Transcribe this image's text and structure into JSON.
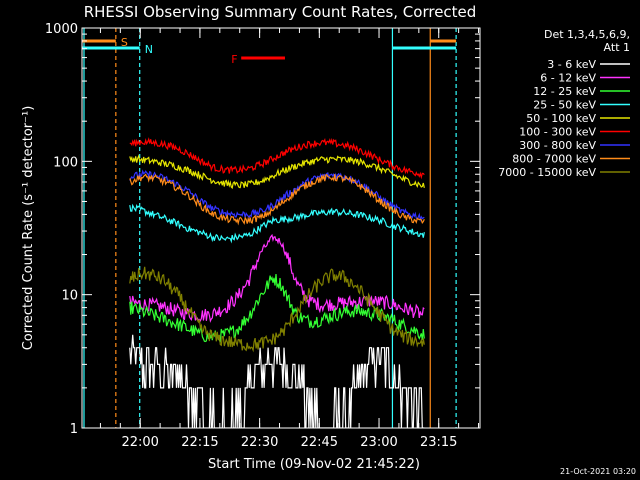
{
  "chart_data": {
    "type": "line",
    "title": "RHESSI Observing Summary Count Rates, Corrected",
    "xlabel": "Start Time (09-Nov-02 21:45:22)",
    "ylabel": "Corrected Count Rate (s⁻¹ detector⁻¹)",
    "x_unit": "minutes after 21:45:22",
    "xlim": [
      0,
      100
    ],
    "yscale": "log",
    "ylim": [
      1,
      1000
    ],
    "x_ticks": [
      {
        "x": 14.63,
        "label": "22:00"
      },
      {
        "x": 29.63,
        "label": "22:15"
      },
      {
        "x": 44.63,
        "label": "22:30"
      },
      {
        "x": 59.63,
        "label": "22:45"
      },
      {
        "x": 74.63,
        "label": "23:00"
      },
      {
        "x": 89.63,
        "label": "23:15"
      }
    ],
    "y_ticks": [
      {
        "y": 1,
        "label": "1"
      },
      {
        "y": 10,
        "label": "10"
      },
      {
        "y": 100,
        "label": "100"
      },
      {
        "y": 1000,
        "label": "1000"
      }
    ],
    "legend_header": [
      "Det 1,3,4,5,6,9,",
      "Att 1"
    ],
    "legend_position": "top-right",
    "timestamp": "21-Oct-2021 03:20",
    "flags": [
      {
        "label": "S",
        "color": "#ff8c1a",
        "x_start": 0,
        "x_end": 8.5
      },
      {
        "label": "N",
        "color": "#33ffff",
        "x_start": 0,
        "x_end": 14.5
      },
      {
        "label": "F",
        "color": "#ff0000",
        "x_start": 40,
        "x_end": 51
      },
      {
        "label": "",
        "color": "#ff8c1a",
        "x_start": 87.5,
        "x_end": 94
      },
      {
        "label": "",
        "color": "#33ffff",
        "x_start": 78,
        "x_end": 94
      }
    ],
    "vlines": [
      {
        "x": 0.5,
        "color": "#33ffff",
        "style": "solid"
      },
      {
        "x": 8.5,
        "color": "#ff8c1a",
        "style": "dashed"
      },
      {
        "x": 14.5,
        "color": "#33ffff",
        "style": "dashed"
      },
      {
        "x": 78,
        "color": "#33ffff",
        "style": "solid"
      },
      {
        "x": 87.5,
        "color": "#ff8c1a",
        "style": "solid"
      },
      {
        "x": 94,
        "color": "#33ffff",
        "style": "dashed"
      }
    ],
    "series": [
      {
        "name": "3 - 6 keV",
        "color": "#ffffff",
        "x": [
          12,
          15,
          18,
          21,
          24,
          27,
          30,
          33,
          36,
          39,
          42,
          45,
          48,
          51,
          54,
          57,
          60,
          63,
          66,
          69,
          72,
          75,
          78,
          80,
          83,
          86
        ],
        "values": [
          3.3,
          3.0,
          2.8,
          2.6,
          2.5,
          2.0,
          1.4,
          1.2,
          1.1,
          1.3,
          2.0,
          3.0,
          3.2,
          2.8,
          2.3,
          1.6,
          1.2,
          1.1,
          1.3,
          2.0,
          3.0,
          3.3,
          2.8,
          2.0,
          1.5,
          1.3
        ]
      },
      {
        "name": "6 - 12 keV",
        "color": "#ff33ff",
        "x": [
          12,
          15,
          18,
          21,
          24,
          27,
          30,
          33,
          36,
          39,
          42,
          45,
          48,
          50,
          52,
          54,
          57,
          60,
          63,
          66,
          69,
          72,
          75,
          78,
          80,
          83,
          86
        ],
        "values": [
          8.8,
          8.5,
          8.3,
          8.0,
          7.5,
          7.2,
          7.0,
          7.2,
          8.0,
          9.5,
          13.0,
          21.0,
          27.0,
          25.0,
          18.0,
          12.0,
          9.0,
          8.4,
          8.5,
          8.7,
          8.8,
          9.0,
          8.8,
          8.5,
          8.0,
          7.6,
          7.0
        ]
      },
      {
        "name": "12 - 25 keV",
        "color": "#33ff33",
        "x": [
          12,
          15,
          18,
          21,
          24,
          27,
          30,
          33,
          36,
          39,
          42,
          45,
          48,
          50,
          52,
          54,
          57,
          60,
          63,
          66,
          69,
          72,
          75,
          78,
          80,
          83,
          86
        ],
        "values": [
          8.0,
          7.5,
          7.0,
          6.5,
          6.0,
          5.5,
          5.0,
          4.8,
          5.0,
          5.5,
          7.0,
          10.0,
          13.5,
          12.0,
          9.0,
          7.0,
          6.3,
          6.5,
          7.0,
          7.4,
          7.6,
          7.3,
          7.0,
          6.5,
          6.0,
          5.5,
          5.0
        ]
      },
      {
        "name": "25 - 50 keV",
        "color": "#33ffff",
        "x": [
          12,
          15,
          18,
          21,
          24,
          27,
          30,
          33,
          36,
          39,
          42,
          45,
          48,
          51,
          54,
          57,
          60,
          63,
          66,
          69,
          72,
          75,
          78,
          81,
          84,
          86
        ],
        "values": [
          45,
          43,
          40,
          37,
          34,
          31,
          29,
          27,
          26,
          27,
          28,
          32,
          36,
          37,
          38,
          40,
          41,
          42,
          41,
          40,
          38,
          36,
          33,
          31,
          29,
          28
        ]
      },
      {
        "name": "50 - 100 keV",
        "color": "#e6e600",
        "x": [
          12,
          15,
          18,
          21,
          24,
          27,
          30,
          33,
          36,
          39,
          42,
          45,
          48,
          51,
          54,
          57,
          60,
          63,
          66,
          69,
          72,
          75,
          78,
          81,
          84,
          86
        ],
        "values": [
          105,
          103,
          100,
          96,
          91,
          85,
          78,
          72,
          68,
          66,
          67,
          71,
          78,
          86,
          93,
          99,
          103,
          104,
          103,
          100,
          95,
          88,
          80,
          73,
          68,
          65
        ]
      },
      {
        "name": "100 - 300 keV",
        "color": "#ff0000",
        "x": [
          12,
          15,
          18,
          21,
          24,
          27,
          30,
          33,
          36,
          39,
          42,
          45,
          48,
          51,
          54,
          57,
          60,
          63,
          66,
          69,
          72,
          75,
          78,
          81,
          84,
          86
        ],
        "values": [
          135,
          140,
          138,
          133,
          125,
          113,
          100,
          90,
          86,
          86,
          88,
          95,
          105,
          117,
          127,
          135,
          138,
          137,
          132,
          124,
          113,
          102,
          93,
          86,
          82,
          80
        ]
      },
      {
        "name": "300 - 800 keV",
        "color": "#3333ff",
        "x": [
          12,
          15,
          18,
          21,
          24,
          27,
          30,
          33,
          36,
          39,
          42,
          45,
          48,
          51,
          54,
          57,
          60,
          63,
          66,
          69,
          72,
          75,
          78,
          81,
          84,
          86
        ],
        "values": [
          76,
          80,
          79,
          74,
          67,
          59,
          50,
          44,
          41,
          40,
          40,
          42,
          47,
          55,
          63,
          71,
          77,
          79,
          77,
          71,
          62,
          53,
          46,
          41,
          39,
          38
        ]
      },
      {
        "name": "800 - 7000 keV",
        "color": "#ff8c1a",
        "x": [
          12,
          15,
          18,
          21,
          24,
          27,
          30,
          33,
          36,
          39,
          42,
          45,
          48,
          51,
          54,
          57,
          60,
          63,
          66,
          69,
          72,
          75,
          78,
          81,
          84,
          86
        ],
        "values": [
          70,
          76,
          75,
          70,
          63,
          55,
          46,
          40,
          37,
          36,
          36,
          38,
          43,
          51,
          60,
          68,
          74,
          76,
          74,
          68,
          59,
          50,
          43,
          38,
          36,
          35
        ]
      },
      {
        "name": "7000 - 15000 keV",
        "color": "#808000",
        "x": [
          12,
          15,
          18,
          21,
          24,
          27,
          30,
          33,
          36,
          39,
          42,
          45,
          48,
          51,
          54,
          57,
          60,
          63,
          66,
          69,
          72,
          75,
          78,
          81,
          84,
          86
        ],
        "values": [
          13.0,
          14.5,
          14.0,
          12.5,
          10.0,
          7.5,
          5.5,
          4.8,
          4.5,
          4.3,
          4.2,
          4.3,
          4.6,
          5.5,
          7.5,
          10.0,
          12.5,
          14.0,
          13.5,
          11.5,
          9.0,
          7.0,
          5.5,
          4.8,
          4.5,
          4.4
        ]
      }
    ]
  }
}
